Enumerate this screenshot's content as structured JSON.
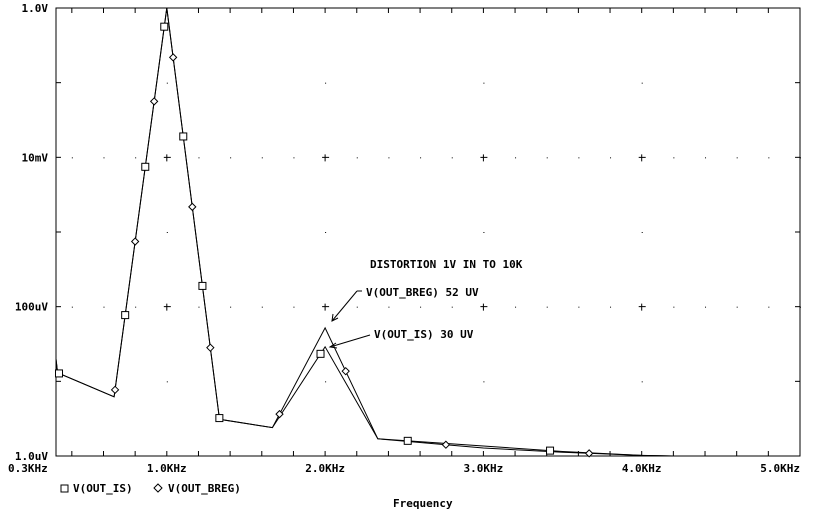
{
  "chart_data": {
    "type": "line",
    "title": "",
    "xlabel": "Frequency",
    "ylabel": "",
    "x_unit": "KHz",
    "xlim": [
      0.3,
      5.0
    ],
    "ylim": [
      1e-06,
      1.0
    ],
    "y_scale": "log",
    "grid": "dots",
    "legend_position": "bottom-left",
    "x_ticks": [
      {
        "value": 0.3,
        "label": "0.3KHz"
      },
      {
        "value": 1.0,
        "label": "1.0KHz"
      },
      {
        "value": 2.0,
        "label": "2.0KHz"
      },
      {
        "value": 3.0,
        "label": "3.0KHz"
      },
      {
        "value": 4.0,
        "label": "4.0KHz"
      },
      {
        "value": 5.0,
        "label": "5.0KHz"
      }
    ],
    "y_ticks": [
      {
        "value": 1.0,
        "label": "1.0V"
      },
      {
        "value": 0.01,
        "label": "10mV"
      },
      {
        "value": 0.0001,
        "label": "100uV"
      },
      {
        "value": 1e-06,
        "label": "1.0uV"
      }
    ],
    "series": [
      {
        "name": "V(OUT_IS)",
        "marker": "square",
        "x": [
          0.3,
          0.31,
          0.667,
          1.0,
          1.333,
          1.667,
          2.0,
          2.333,
          3.0,
          3.5,
          4.0,
          4.2
        ],
        "y": [
          2e-05,
          1.3e-05,
          6.2e-06,
          1.0,
          3.1e-06,
          2.4e-06,
          2.9e-05,
          1.7e-06,
          1.36e-06,
          1.15e-06,
          1.02e-06,
          1e-06
        ]
      },
      {
        "name": "V(OUT_BREG)",
        "marker": "diamond",
        "x": [
          0.3,
          0.31,
          0.667,
          1.0,
          1.333,
          1.667,
          2.0,
          2.333,
          3.0,
          3.5,
          4.0,
          4.2
        ],
        "y": [
          2e-05,
          1.3e-05,
          6.2e-06,
          1.0,
          3.1e-06,
          2.4e-06,
          5.2e-05,
          1.7e-06,
          1.28e-06,
          1.12e-06,
          1.02e-06,
          1e-06
        ]
      }
    ],
    "annotations": {
      "title_note": "DISTORTION 1V IN TO 10K",
      "breg_label": "V(OUT_BREG) 52 UV",
      "is_label": "V(OUT_IS) 30 UV"
    },
    "legend": {
      "is": "V(OUT_IS)",
      "breg": "V(OUT_BREG)"
    }
  }
}
